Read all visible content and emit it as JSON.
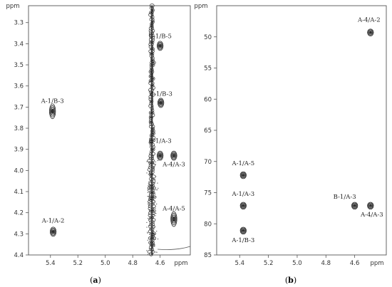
{
  "chart_data": [
    {
      "type": "scatter",
      "panel_label": "a",
      "ylabel": "ppm",
      "xlabel": "ppm",
      "xlim": [
        5.56,
        4.38
      ],
      "ylim": [
        3.22,
        4.4
      ],
      "x_ticks": [
        5.4,
        5.2,
        5.0,
        4.8,
        4.6
      ],
      "x_tick_labels": [
        "5.4",
        "5.2",
        "5.0",
        "4.8",
        "4.6"
      ],
      "y_ticks": [
        3.3,
        3.4,
        3.5,
        3.6,
        3.7,
        3.8,
        3.9,
        4.0,
        4.1,
        4.2,
        4.3,
        4.4
      ],
      "y_tick_labels": [
        "3.3",
        "3.4",
        "3.5",
        "3.6",
        "3.7",
        "3.8",
        "3.9",
        "4.0",
        "4.1",
        "4.2",
        "4.3",
        "4.4"
      ],
      "residual_band": {
        "x": 4.66,
        "y_range": [
          3.22,
          4.4
        ]
      },
      "peaks": [
        {
          "label": "A-1/B-3",
          "x": 5.385,
          "y": 3.72
        },
        {
          "label": "A-1/A-2",
          "x": 5.38,
          "y": 4.29
        },
        {
          "label": "B-1/B-5",
          "x": 4.6,
          "y": 3.41
        },
        {
          "label": "B-1/B-3",
          "x": 4.595,
          "y": 3.68
        },
        {
          "label": "B-1/A-3",
          "x": 4.6,
          "y": 3.93
        },
        {
          "label": "A-4/A-3",
          "x": 4.5,
          "y": 3.93
        },
        {
          "label": "A-4/A-5",
          "x": 4.5,
          "y": 4.23
        }
      ]
    },
    {
      "type": "scatter",
      "panel_label": "b",
      "ylabel": "ppm",
      "xlabel": "ppm",
      "xlim": [
        5.56,
        4.38
      ],
      "ylim": [
        45,
        85
      ],
      "x_ticks": [
        5.4,
        5.2,
        5.0,
        4.8,
        4.6
      ],
      "x_tick_labels": [
        "5.4",
        "5.2",
        "5.0",
        "4.8",
        "4.6"
      ],
      "y_ticks": [
        50,
        55,
        60,
        65,
        70,
        75,
        80,
        85
      ],
      "y_tick_labels": [
        "50",
        "55",
        "60",
        "65",
        "70",
        "75",
        "80",
        "85"
      ],
      "peaks": [
        {
          "label": "A-4/A-2",
          "x": 4.49,
          "y": 49.3
        },
        {
          "label": "A-1/A-5",
          "x": 5.375,
          "y": 72.2
        },
        {
          "label": "A-1/A-3",
          "x": 5.375,
          "y": 77.1
        },
        {
          "label": "A-1/B-3",
          "x": 5.375,
          "y": 81.1
        },
        {
          "label": "B-1/A-3",
          "x": 4.6,
          "y": 77.1
        },
        {
          "label": "A-4/A-3",
          "x": 4.49,
          "y": 77.1
        }
      ]
    }
  ]
}
